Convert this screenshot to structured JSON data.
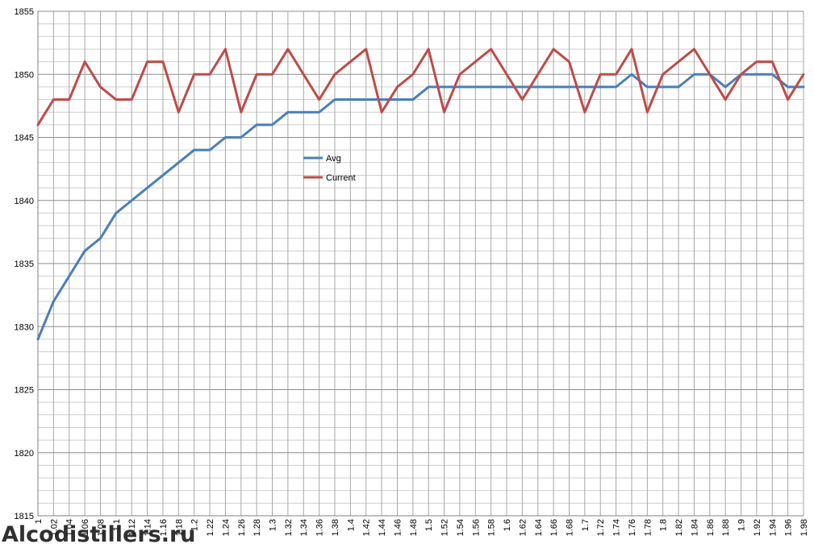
{
  "chart_data": {
    "type": "line",
    "ylim": [
      1815,
      1855
    ],
    "yticks": [
      1815,
      1820,
      1825,
      1830,
      1835,
      1840,
      1845,
      1850,
      1855
    ],
    "x": [
      "1",
      "1.02",
      "1.04",
      "1.06",
      "1.08",
      "1.1",
      "1.12",
      "1.14",
      "1.16",
      "1.18",
      "1.2",
      "1.22",
      "1.24",
      "1.26",
      "1.28",
      "1.3",
      "1.32",
      "1.34",
      "1.36",
      "1.38",
      "1.4",
      "1.42",
      "1.44",
      "1.46",
      "1.48",
      "1.5",
      "1.52",
      "1.54",
      "1.56",
      "1.58",
      "1.6",
      "1.62",
      "1.64",
      "1.66",
      "1.68",
      "1.7",
      "1.72",
      "1.74",
      "1.76",
      "1.78",
      "1.8",
      "1.82",
      "1.84",
      "1.86",
      "1.88",
      "1.9",
      "1.92",
      "1.94",
      "1.96",
      "1.98"
    ],
    "series": [
      {
        "name": "Avg",
        "color": "#4a7ebb",
        "values": [
          1829,
          1832,
          1834,
          1836,
          1837,
          1839,
          1840,
          1841,
          1842,
          1843,
          1844,
          1844,
          1845,
          1845,
          1846,
          1846,
          1847,
          1847,
          1847,
          1848,
          1848,
          1848,
          1848,
          1848,
          1848,
          1849,
          1849,
          1849,
          1849,
          1849,
          1849,
          1849,
          1849,
          1849,
          1849,
          1849,
          1849,
          1849,
          1850,
          1849,
          1849,
          1849,
          1850,
          1850,
          1849,
          1850,
          1850,
          1850,
          1849,
          1849
        ]
      },
      {
        "name": "Current",
        "color": "#be4b48",
        "values": [
          1846,
          1848,
          1848,
          1851,
          1849,
          1848,
          1848,
          1851,
          1851,
          1847,
          1850,
          1850,
          1852,
          1847,
          1850,
          1850,
          1852,
          1850,
          1848,
          1850,
          1851,
          1852,
          1847,
          1849,
          1850,
          1852,
          1847,
          1850,
          1851,
          1852,
          1850,
          1848,
          1850,
          1852,
          1851,
          1847,
          1850,
          1850,
          1852,
          1847,
          1850,
          1851,
          1852,
          1850,
          1848,
          1850,
          1851,
          1851,
          1848,
          1850
        ]
      }
    ],
    "grid": true,
    "legend": "center-left"
  },
  "watermark": "Alcodistillers.ru"
}
